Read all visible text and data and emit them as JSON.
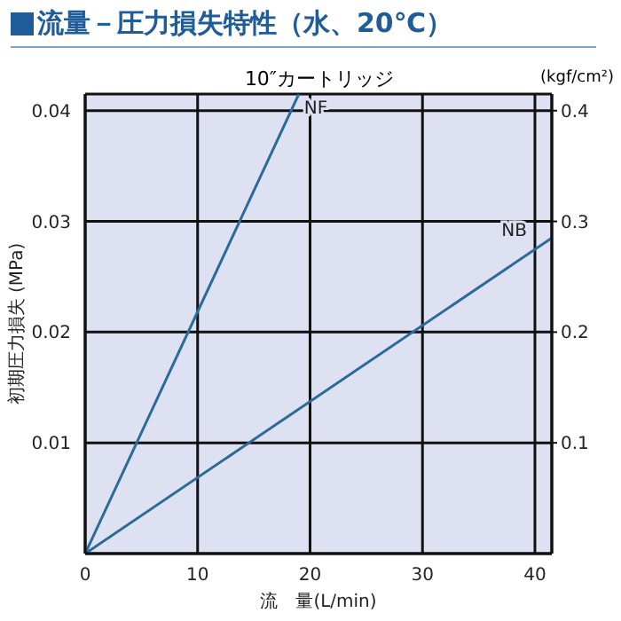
{
  "chart_data": {
    "type": "line",
    "title": "流量－圧力損失特性（水、20℃）",
    "subtitle": "10″カートリッジ",
    "xlabel": "流　量(L/min)",
    "ylabel": "初期圧力損失 (MPa)",
    "y2label": "(kgf/cm²)",
    "series": [
      {
        "name": "NF",
        "color": "#2b6b9c",
        "x": [
          0,
          19
        ],
        "values": [
          0,
          0.0415
        ]
      },
      {
        "name": "NB",
        "color": "#2b6b9c",
        "x": [
          0,
          41.5
        ],
        "values": [
          0,
          0.0285
        ]
      }
    ],
    "xlim": [
      0,
      41.5
    ],
    "xticks": [
      0,
      10,
      20,
      30,
      40
    ],
    "ylim": [
      0,
      0.0415
    ],
    "yticks": [
      0.01,
      0.02,
      0.03,
      0.04
    ],
    "y2lim": [
      0,
      0.415
    ],
    "y2ticks": [
      0.1,
      0.2,
      0.3,
      0.4
    ],
    "grid": true,
    "legend": false,
    "marker": "none",
    "line_style": "solid"
  }
}
